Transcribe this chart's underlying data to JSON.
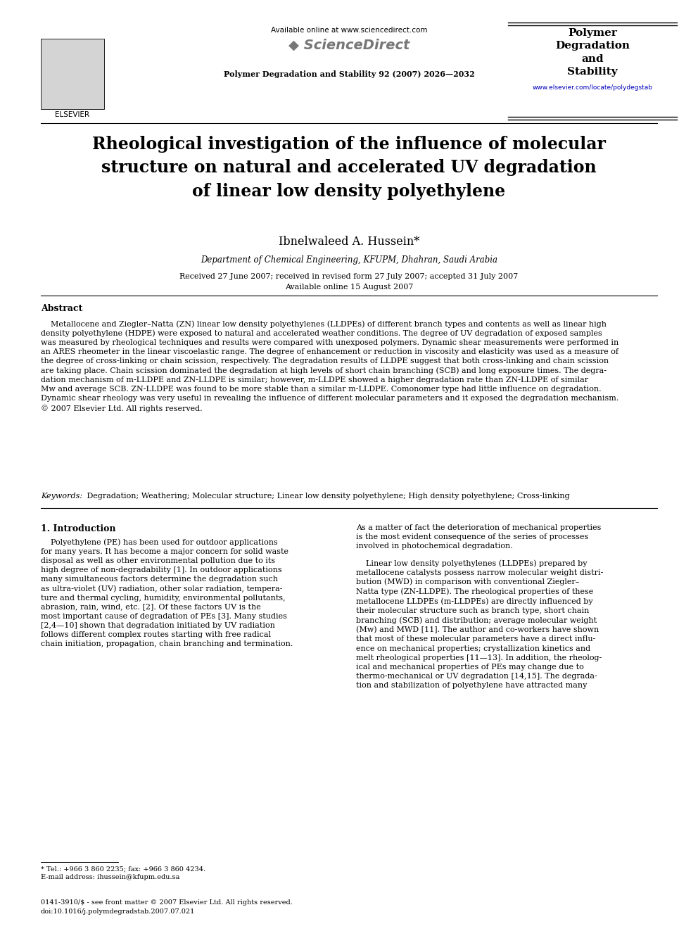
{
  "bg_color": "#ffffff",
  "page_width": 9.92,
  "page_height": 13.23,
  "dpi": 100,
  "header": {
    "elsevier_text": "ELSEVIER",
    "available_online": "Available online at www.sciencedirect.com",
    "sciencedirect": "ScienceDirect",
    "journal_line": "Polymer Degradation and Stability 92 (2007) 2026—2032",
    "journal_name_line1": "Polymer",
    "journal_name_line2": "Degradation",
    "journal_name_line3": "and",
    "journal_name_line4": "Stability",
    "journal_url": "www.elsevier.com/locate/polydegstab"
  },
  "title": "Rheological investigation of the influence of molecular\nstructure on natural and accelerated UV degradation\nof linear low density polyethylene",
  "author": "Ibnelwaleed A. Hussein*",
  "affiliation": "Department of Chemical Engineering, KFUPM, Dhahran, Saudi Arabia",
  "dates_line1": "Received 27 June 2007; received in revised form 27 July 2007; accepted 31 July 2007",
  "dates_line2": "Available online 15 August 2007",
  "abstract_heading": "Abstract",
  "abstract_text": "    Metallocene and Ziegler–Natta (ZN) linear low density polyethylenes (LLDPEs) of different branch types and contents as well as linear high\ndensity polyethylene (HDPE) were exposed to natural and accelerated weather conditions. The degree of UV degradation of exposed samples\nwas measured by rheological techniques and results were compared with unexposed polymers. Dynamic shear measurements were performed in\nan ARES rheometer in the linear viscoelastic range. The degree of enhancement or reduction in viscosity and elasticity was used as a measure of\nthe degree of cross-linking or chain scission, respectively. The degradation results of LLDPE suggest that both cross-linking and chain scission\nare taking place. Chain scission dominated the degradation at high levels of short chain branching (SCB) and long exposure times. The degra-\ndation mechanism of m-LLDPE and ZN-LLDPE is similar; however, m-LLDPE showed a higher degradation rate than ZN-LLDPE of similar\nMw and average SCB. ZN-LLDPE was found to be more stable than a similar m-LLDPE. Comonomer type had little influence on degradation.\nDynamic shear rheology was very useful in revealing the influence of different molecular parameters and it exposed the degradation mechanism.\n© 2007 Elsevier Ltd. All rights reserved.",
  "keywords_label": "Keywords:",
  "keywords_text": " Degradation; Weathering; Molecular structure; Linear low density polyethylene; High density polyethylene; Cross-linking",
  "section1_heading": "1. Introduction",
  "section1_col1_para1": "    Polyethylene (PE) has been used for outdoor applications\nfor many years. It has become a major concern for solid waste\ndisposal as well as other environmental pollution due to its\nhigh degree of non-degradability [1]. In outdoor applications\nmany simultaneous factors determine the degradation such\nas ultra-violet (UV) radiation, other solar radiation, tempera-\nture and thermal cycling, humidity, environmental pollutants,\nabrasion, rain, wind, etc. [2]. Of these factors UV is the\nmost important cause of degradation of PEs [3]. Many studies\n[2,4—10] shown that degradation initiated by UV radiation\nfollows different complex routes starting with free radical\nchain initiation, propagation, chain branching and termination.",
  "section1_col2_para1": "As a matter of fact the deterioration of mechanical properties\nis the most evident consequence of the series of processes\ninvolved in photochemical degradation.",
  "section1_col2_para2": "    Linear low density polyethylenes (LLDPEs) prepared by\nmetallocene catalysts possess narrow molecular weight distri-\nbution (MWD) in comparison with conventional Ziegler–\nNatta type (ZN-LLDPE). The rheological properties of these\nmetallocene LLDPEs (m-LLDPEs) are directly influenced by\ntheir molecular structure such as branch type, short chain\nbranching (SCB) and distribution; average molecular weight\n(Mw) and MWD [11]. The author and co-workers have shown\nthat most of these molecular parameters have a direct influ-\nence on mechanical properties; crystallization kinetics and\nmelt rheological properties [11—13]. In addition, the rheolog-\nical and mechanical properties of PEs may change due to\nthermo-mechanical or UV degradation [14,15]. The degrada-\ntion and stabilization of polyethylene have attracted many",
  "footnote_tel": "* Tel.: +966 3 860 2235; fax: +966 3 860 4234.",
  "footnote_email": "E-mail address: ihussein@kfupm.edu.sa",
  "footer_line1": "0141-3910/$ - see front matter © 2007 Elsevier Ltd. All rights reserved.",
  "footer_line2": "doi:10.1016/j.polymdegradstab.2007.07.021"
}
